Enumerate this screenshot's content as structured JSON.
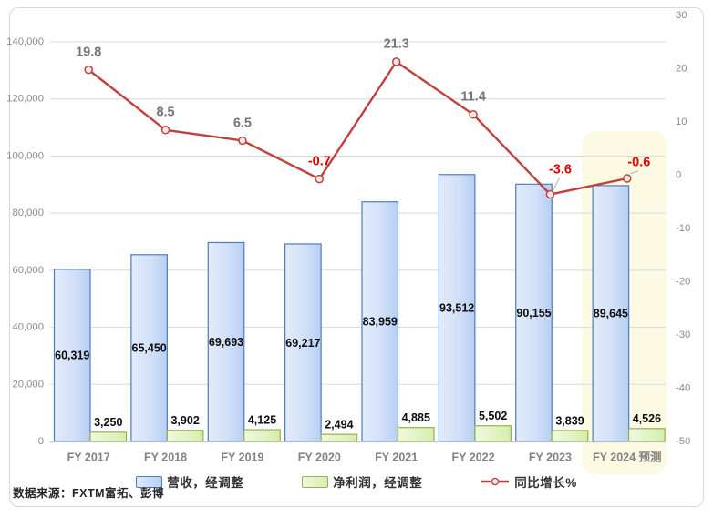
{
  "chart_data": {
    "type": "combo",
    "title": "",
    "categories": [
      "FY 2017",
      "FY 2018",
      "FY 2019",
      "FY 2020",
      "FY 2021",
      "FY 2022",
      "FY 2023",
      "FY 2024 预测"
    ],
    "series": [
      {
        "name": "营收，经调整",
        "type": "bar",
        "axis": "left",
        "values": [
          60319,
          65450,
          69693,
          69217,
          83959,
          93512,
          90155,
          89645
        ],
        "labels": [
          "60,319",
          "65,450",
          "69,693",
          "69,217",
          "83,959",
          "93,512",
          "90,155",
          "89,645"
        ]
      },
      {
        "name": "净利润，经调整",
        "type": "bar",
        "axis": "left",
        "values": [
          3250,
          3902,
          4125,
          2494,
          4885,
          5502,
          3839,
          4526
        ],
        "labels": [
          "3,250",
          "3,902",
          "4,125",
          "2,494",
          "4,885",
          "5,502",
          "3,839",
          "4,526"
        ]
      },
      {
        "name": "同比增长%",
        "type": "line",
        "axis": "right",
        "values": [
          19.8,
          8.5,
          6.5,
          -0.7,
          21.3,
          11.4,
          -3.6,
          -0.6
        ],
        "labels": [
          "19.8",
          "8.5",
          "6.5",
          "-0.7",
          "21.3",
          "11.4",
          "-3.6",
          "-0.6"
        ]
      }
    ],
    "left_axis": {
      "min": 0,
      "max": 140000,
      "step": 20000,
      "tick_labels": [
        "0",
        "20,000",
        "40,000",
        "60,000",
        "80,000",
        "100,000",
        "120,000",
        "140,000"
      ]
    },
    "right_axis": {
      "min": -50,
      "max": 30,
      "step": 10,
      "tick_labels": [
        "-50",
        "-40",
        "-30",
        "-20",
        "-10",
        "0",
        "10",
        "20",
        "30"
      ]
    },
    "gridlines": true,
    "legend_position": "bottom",
    "highlight": {
      "category_index": 7,
      "label": "FY 2024 预测",
      "color": "#fcfae3"
    },
    "source_note": "数据来源：FXTM富拓、彭博"
  },
  "colors": {
    "revenue_fill_light": "#dfeafb",
    "revenue_fill_dark": "#b9d0f3",
    "revenue_border": "#4f7cc0",
    "profit_fill_light": "#eef8dc",
    "profit_fill_dark": "#d9efb2",
    "profit_border": "#94b24d",
    "growth_line": "#c0413b",
    "marker_fill": "#f6ebea",
    "negative_label": "#e00000",
    "positive_label": "#767676",
    "bar_label": "#0d0d0d",
    "highlight_bg": "#fcfae3",
    "grid": "#d9d9d9",
    "axis_line": "#bfbfbf",
    "axis_text": "#8c8c8c",
    "x_label_text": "#828282",
    "leader": "#b0b0b0"
  },
  "legend": {
    "items": [
      {
        "label": "营收，经调整",
        "swatch": "bar-blue"
      },
      {
        "label": "净利润，经调整",
        "swatch": "bar-green"
      },
      {
        "label": "同比增长%",
        "swatch": "line-red"
      }
    ]
  }
}
